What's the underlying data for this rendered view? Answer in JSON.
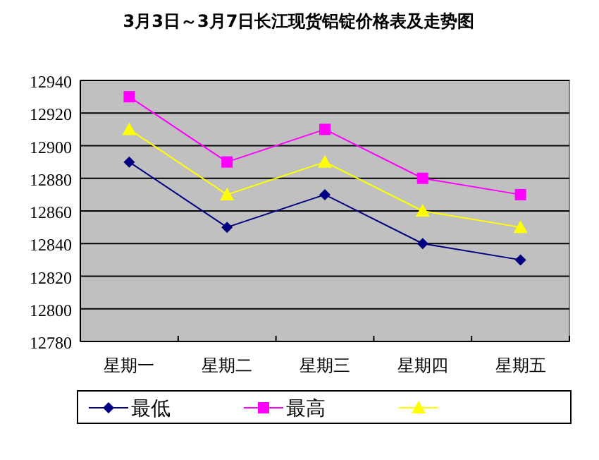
{
  "chart_data": {
    "type": "line",
    "title": "3月3日～3月7日长江现货铝锭价格表及走势图",
    "categories": [
      "星期一",
      "星期二",
      "星期三",
      "星期四",
      "星期五"
    ],
    "series": [
      {
        "name": "最低",
        "color": "#000080",
        "marker": "diamond",
        "values": [
          12890,
          12850,
          12870,
          12840,
          12830
        ]
      },
      {
        "name": "最高",
        "color": "#ff00ff",
        "marker": "square",
        "values": [
          12930,
          12890,
          12910,
          12880,
          12870
        ]
      },
      {
        "color": "#ffff00",
        "marker": "triangle",
        "values": [
          12910,
          12870,
          12890,
          12860,
          12850
        ]
      }
    ],
    "ylim": [
      12780,
      12940
    ],
    "yticks": [
      12780,
      12800,
      12820,
      12840,
      12860,
      12880,
      12900,
      12920,
      12940
    ],
    "grid": "y",
    "legend": "bottom"
  }
}
